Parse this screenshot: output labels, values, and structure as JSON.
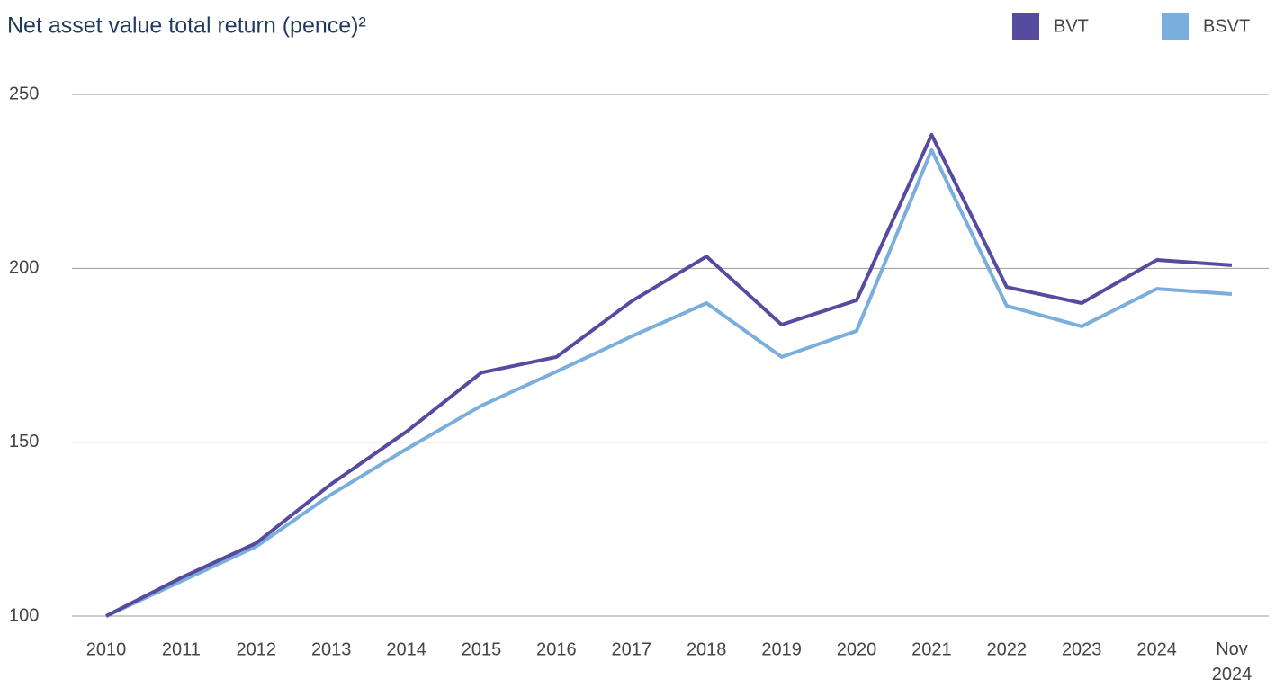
{
  "chart_data": {
    "type": "line",
    "title": "Net asset value total return (pence)²",
    "categories": [
      "2010",
      "2011",
      "2012",
      "2013",
      "2014",
      "2015",
      "2016",
      "2017",
      "2018",
      "2019",
      "2020",
      "2021",
      "2022",
      "2023",
      "2024",
      "Nov 2024"
    ],
    "series": [
      {
        "name": "BVT",
        "color": "#574ba0",
        "values": [
          100,
          111,
          121,
          138,
          153,
          170,
          174.5,
          190.5,
          203.4,
          183.8,
          190.8,
          238.4,
          194.6,
          190,
          202.4,
          200.9
        ]
      },
      {
        "name": "BSVT",
        "color": "#7aaedc",
        "values": [
          100,
          110,
          120,
          135,
          148,
          160.5,
          170.3,
          180.4,
          190,
          174.5,
          182,
          234,
          189.2,
          183.3,
          194.1,
          192.6
        ]
      }
    ],
    "ylim": [
      100,
      250
    ],
    "yticks": [
      100,
      150,
      200,
      250
    ],
    "grid": true,
    "legend": "top-right"
  }
}
